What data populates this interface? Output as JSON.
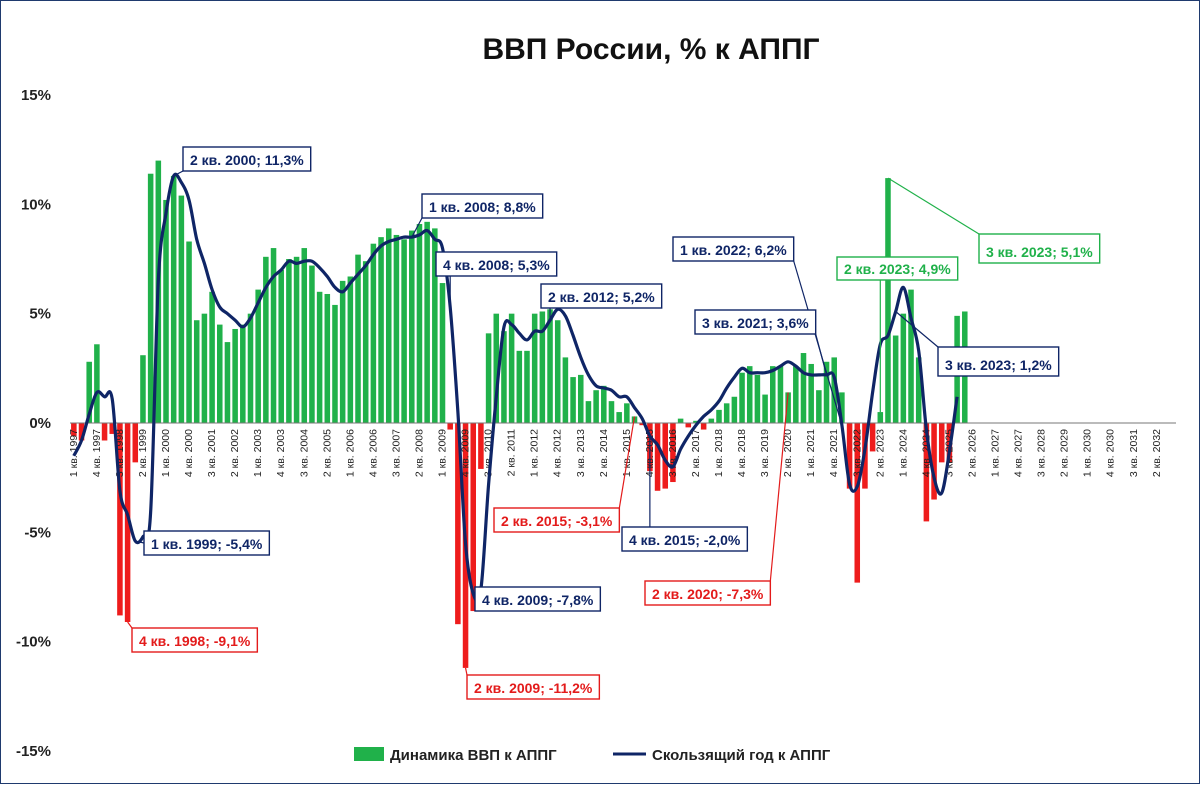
{
  "colors": {
    "positive_bar": "#20b14a",
    "negative_bar": "#ee1c1c",
    "line": "#0f2566",
    "ann_blue": "#0f2566",
    "ann_red": "#e31b1b",
    "ann_green": "#20b14a"
  },
  "chart_data": {
    "type": "bar",
    "title": "ВВП России, % к АППГ",
    "xlabel": "",
    "ylabel": "",
    "ylim": [
      -15,
      15
    ],
    "yticks": [
      15,
      10,
      5,
      0,
      -5,
      -10,
      -15
    ],
    "ytick_labels": [
      "15%",
      "10%",
      "5%",
      "0%",
      "-5%",
      "-10%",
      "-15%"
    ],
    "grid": false,
    "legend_position": "bottom-center",
    "x_period_start": "1 кв. 1997",
    "x_labels": [
      {
        "idx": 0,
        "label": "1 кв. 1997"
      },
      {
        "idx": 3,
        "label": "4 кв. 1997"
      },
      {
        "idx": 6,
        "label": "3 кв. 1998"
      },
      {
        "idx": 9,
        "label": "2 кв. 1999"
      },
      {
        "idx": 12,
        "label": "1 кв. 2000"
      },
      {
        "idx": 15,
        "label": "4 кв. 2000"
      },
      {
        "idx": 18,
        "label": "3 кв. 2001"
      },
      {
        "idx": 21,
        "label": "2 кв. 2002"
      },
      {
        "idx": 24,
        "label": "1 кв. 2003"
      },
      {
        "idx": 27,
        "label": "4 кв. 2003"
      },
      {
        "idx": 30,
        "label": "3 кв. 2004"
      },
      {
        "idx": 33,
        "label": "2 кв. 2005"
      },
      {
        "idx": 36,
        "label": "1 кв. 2006"
      },
      {
        "idx": 39,
        "label": "4 кв. 2006"
      },
      {
        "idx": 42,
        "label": "3 кв. 2007"
      },
      {
        "idx": 45,
        "label": "2 кв. 2008"
      },
      {
        "idx": 48,
        "label": "1 кв. 2009"
      },
      {
        "idx": 51,
        "label": "4 кв. 2009"
      },
      {
        "idx": 54,
        "label": "3 кв. 2010"
      },
      {
        "idx": 57,
        "label": "2 кв. 2011"
      },
      {
        "idx": 60,
        "label": "1 кв. 2012"
      },
      {
        "idx": 63,
        "label": "4 кв. 2012"
      },
      {
        "idx": 66,
        "label": "3 кв. 2013"
      },
      {
        "idx": 69,
        "label": "2 кв. 2014"
      },
      {
        "idx": 72,
        "label": "1 кв. 2015"
      },
      {
        "idx": 75,
        "label": "4 кв. 2015"
      },
      {
        "idx": 78,
        "label": "3 кв. 2016"
      },
      {
        "idx": 81,
        "label": "2 кв. 2017"
      },
      {
        "idx": 84,
        "label": "1 кв. 2018"
      },
      {
        "idx": 87,
        "label": "4 кв. 2018"
      },
      {
        "idx": 90,
        "label": "3 кв. 2019"
      },
      {
        "idx": 93,
        "label": "2 кв. 2020"
      },
      {
        "idx": 96,
        "label": "1 кв. 2021"
      },
      {
        "idx": 99,
        "label": "4 кв. 2021"
      },
      {
        "idx": 102,
        "label": "3 кв. 2022"
      },
      {
        "idx": 105,
        "label": "2 кв. 2023"
      },
      {
        "idx": 108,
        "label": "1 кв. 2024"
      },
      {
        "idx": 111,
        "label": "4 кв. 2024"
      },
      {
        "idx": 114,
        "label": "3 кв. 2025"
      },
      {
        "idx": 117,
        "label": "2 кв. 2026"
      },
      {
        "idx": 120,
        "label": "1 кв. 2027"
      },
      {
        "idx": 123,
        "label": "4 кв. 2027"
      },
      {
        "idx": 126,
        "label": "3 кв. 2028"
      },
      {
        "idx": 129,
        "label": "2 кв. 2029"
      },
      {
        "idx": 132,
        "label": "1 кв. 2030"
      },
      {
        "idx": 135,
        "label": "4 кв. 2030"
      },
      {
        "idx": 138,
        "label": "3 кв. 2031"
      },
      {
        "idx": 141,
        "label": "2 кв. 2032"
      }
    ],
    "period_count": 144,
    "series": [
      {
        "name": "Динамика ВВП к АППГ",
        "type": "bar",
        "values": [
          -0.6,
          -0.8,
          2.8,
          3.6,
          -0.8,
          -0.5,
          -8.8,
          -9.1,
          -1.8,
          3.1,
          11.4,
          12.0,
          10.2,
          11.3,
          10.4,
          8.3,
          4.7,
          5.0,
          6.0,
          4.5,
          3.7,
          4.3,
          4.5,
          5.0,
          6.1,
          7.6,
          8.0,
          7.0,
          7.5,
          7.6,
          8.0,
          7.2,
          6.0,
          5.9,
          5.4,
          6.5,
          6.7,
          7.7,
          7.4,
          8.2,
          8.5,
          8.9,
          8.6,
          8.4,
          8.8,
          9.1,
          9.2,
          8.9,
          6.4,
          -0.3,
          -9.2,
          -11.2,
          -8.6,
          -2.1,
          4.1,
          5.0,
          4.2,
          5.0,
          3.3,
          3.3,
          5.0,
          5.1,
          5.2,
          4.7,
          3.0,
          2.1,
          2.2,
          1.0,
          1.5,
          1.7,
          1.0,
          0.5,
          0.9,
          0.3,
          -0.1,
          -2.2,
          -3.1,
          -3.0,
          -2.7,
          0.2,
          -0.2,
          0.1,
          -0.3,
          0.2,
          0.6,
          0.9,
          1.2,
          2.3,
          2.6,
          2.2,
          1.3,
          2.6,
          2.6,
          1.4,
          2.6,
          3.2,
          2.7,
          1.5,
          2.8,
          3.0,
          1.4,
          -3.0,
          -7.3,
          -3.0,
          -1.3,
          0.5,
          11.2,
          4.0,
          5.0,
          6.1,
          3.0,
          -4.5,
          -3.5,
          -1.8,
          -1.8,
          4.9,
          5.1
        ]
      },
      {
        "name": "Скользящий год к АППГ",
        "type": "line",
        "values": [
          -1.5,
          -0.8,
          0.4,
          1.4,
          1.2,
          1.1,
          -3.1,
          -4.2,
          -5.4,
          -5.2,
          -4.1,
          6.5,
          9.6,
          11.3,
          11.0,
          10.2,
          8.4,
          7.3,
          6.1,
          5.3,
          5.0,
          4.7,
          4.4,
          4.8,
          5.5,
          6.2,
          6.7,
          7.0,
          7.4,
          7.3,
          7.4,
          7.4,
          7.1,
          6.7,
          6.2,
          6.0,
          6.4,
          6.8,
          7.2,
          7.7,
          8.1,
          8.3,
          8.4,
          8.5,
          8.5,
          8.6,
          8.8,
          8.4,
          8.0,
          5.3,
          0.5,
          -5.5,
          -7.8,
          -7.6,
          -2.8,
          1.2,
          4.4,
          4.5,
          4.1,
          3.8,
          4.2,
          4.2,
          4.7,
          5.2,
          4.9,
          4.0,
          3.0,
          2.2,
          1.7,
          1.6,
          1.5,
          1.2,
          1.2,
          0.7,
          0.2,
          -0.6,
          -1.0,
          -1.7,
          -2.0,
          -1.2,
          -0.6,
          -0.1,
          0.3,
          0.6,
          1.0,
          1.6,
          2.1,
          2.5,
          2.3,
          2.3,
          2.3,
          2.4,
          2.6,
          2.8,
          2.6,
          2.3,
          2.2,
          2.2,
          2.2,
          2.1,
          -0.1,
          -2.8,
          -2.9,
          -1.2,
          1.4,
          3.6,
          4.0,
          5.1,
          6.2,
          4.8,
          3.3,
          -0.3,
          -2.5,
          -3.2,
          -1.3,
          1.2
        ]
      }
    ],
    "annotations": [
      {
        "text": "2 кв. 2000; 11,3%",
        "series": "line",
        "idx": 13,
        "color": "blue",
        "bx": 182,
        "by": 146
      },
      {
        "text": "1 кв. 2008; 8,8%",
        "series": "line",
        "idx": 44,
        "color": "blue",
        "bx": 421,
        "by": 193
      },
      {
        "text": "4 кв. 2008; 5,3%",
        "series": "line",
        "idx": 49,
        "color": "blue",
        "bx": 435,
        "by": 251
      },
      {
        "text": "2 кв. 2012; 5,2%",
        "series": "line",
        "idx": 62,
        "color": "blue",
        "bx": 540,
        "by": 283
      },
      {
        "text": "1 кв. 2022; 6,2%",
        "series": "line",
        "idx": 100,
        "color": "blue",
        "bx": 672,
        "by": 236
      },
      {
        "text": "3 кв. 2021; 3,6%",
        "series": "line",
        "idx": 98,
        "color": "blue",
        "bx": 694,
        "by": 309
      },
      {
        "text": "2 кв. 2023; 4,9%",
        "series": "bar",
        "idx": 105,
        "color": "green",
        "bx": 836,
        "by": 256
      },
      {
        "text": "3 кв. 2023; 5,1%",
        "series": "bar",
        "idx": 106,
        "color": "green-big",
        "bx": 978,
        "by": 233
      },
      {
        "text": "3 кв. 2023; 1,2%",
        "series": "line",
        "idx": 107,
        "color": "blue-big",
        "bx": 937,
        "by": 346
      },
      {
        "text": "1 кв. 1999; -5,4%",
        "series": "line",
        "idx": 8,
        "color": "blue",
        "bx": 143,
        "by": 530
      },
      {
        "text": "4 кв. 1998; -9,1%",
        "series": "bar",
        "idx": 7,
        "color": "red",
        "bx": 131,
        "by": 627
      },
      {
        "text": "4 кв. 2009; -7,8%",
        "series": "line",
        "idx": 52,
        "color": "blue",
        "bx": 474,
        "by": 586
      },
      {
        "text": "2 кв. 2009; -11,2%",
        "series": "bar",
        "idx": 51,
        "color": "red",
        "bx": 466,
        "by": 674
      },
      {
        "text": "2 кв. 2015; -3,1%",
        "series": "bar",
        "idx": 73,
        "color": "red",
        "bx": 493,
        "by": 507
      },
      {
        "text": "4 кв. 2015; -2,0%",
        "series": "line",
        "idx": 75,
        "color": "blue",
        "bx": 621,
        "by": 526
      },
      {
        "text": "2 кв. 2020; -7,3%",
        "series": "bar",
        "idx": 93,
        "color": "red",
        "bx": 644,
        "by": 580
      }
    ]
  }
}
